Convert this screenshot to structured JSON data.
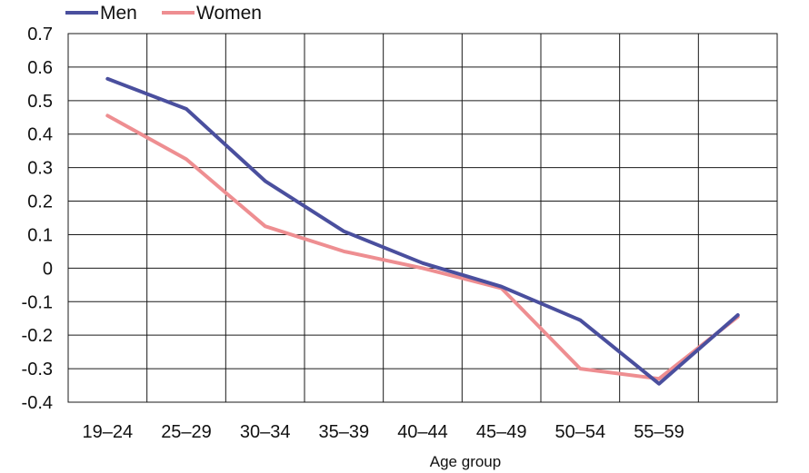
{
  "chart_data": {
    "type": "line",
    "categories": [
      "19–24",
      "25–29",
      "30–34",
      "35–39",
      "40–44",
      "45–49",
      "50–54",
      "55–59",
      ""
    ],
    "series": [
      {
        "name": "Men",
        "color": "#4a4f9e",
        "values": [
          0.565,
          0.475,
          0.26,
          0.11,
          0.015,
          -0.055,
          -0.155,
          -0.345,
          -0.14
        ]
      },
      {
        "name": "Women",
        "color": "#ee8e91",
        "values": [
          0.455,
          0.325,
          0.125,
          0.05,
          0.0,
          -0.06,
          -0.3,
          -0.33,
          -0.145
        ]
      }
    ],
    "xlabel": "Age group",
    "ylabel": "",
    "ylim": [
      -0.4,
      0.7
    ],
    "yticks": [
      "0.7",
      "0.6",
      "0.5",
      "0.4",
      "0.3",
      "0.2",
      "0.1",
      "0",
      "-0.1",
      "-0.2",
      "-0.3",
      "-0.4"
    ],
    "grid": true,
    "legend": "top-left"
  }
}
